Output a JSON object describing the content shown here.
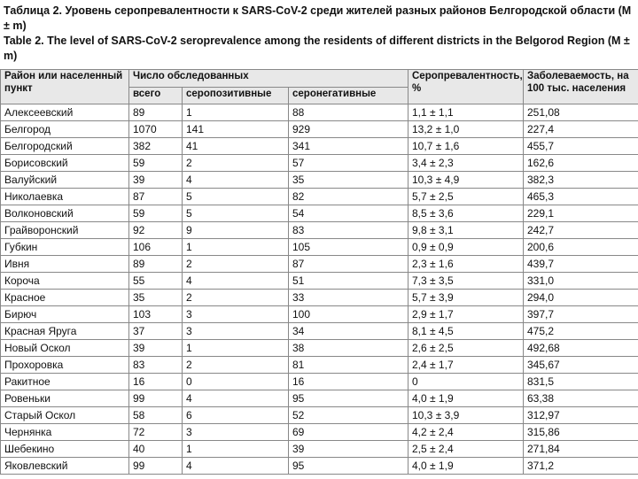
{
  "title_ru": "Таблица 2. Уровень серопревалентности к SARS-CoV-2 среди жителей разных районов Белгородской области (M ± m)",
  "title_en": "Table 2. The level of SARS-CoV-2 seroprevalence among the residents of different districts in the Belgorod Region (M ± m)",
  "table": {
    "header": [
      "Район или населенный пункт",
      "Число обследованных",
      "Серопревалентность, %",
      "Заболеваемость, на 100 тыс. населения"
    ],
    "subheader": [
      "всего",
      "серопозитивные",
      "серонегативные"
    ],
    "rows": [
      [
        "Алексеевский",
        "89",
        "1",
        "88",
        "1,1 ± 1,1",
        "251,08"
      ],
      [
        "Белгород",
        "1070",
        "141",
        "929",
        "13,2 ± 1,0",
        "227,4"
      ],
      [
        "Белгородский",
        "382",
        "41",
        "341",
        "10,7 ± 1,6",
        "455,7"
      ],
      [
        "Борисовский",
        "59",
        "2",
        "57",
        "3,4 ± 2,3",
        "162,6"
      ],
      [
        "Валуйский",
        "39",
        "4",
        "35",
        "10,3 ± 4,9",
        "382,3"
      ],
      [
        "Николаевка",
        "87",
        "5",
        "82",
        "5,7 ± 2,5",
        "465,3"
      ],
      [
        "Волконовский",
        "59",
        "5",
        "54",
        "8,5 ± 3,6",
        "229,1"
      ],
      [
        "Грайворонский",
        "92",
        "9",
        "83",
        "9,8 ± 3,1",
        "242,7"
      ],
      [
        "Губкин",
        "106",
        "1",
        "105",
        "0,9 ± 0,9",
        "200,6"
      ],
      [
        "Ивня",
        "89",
        "2",
        "87",
        "2,3 ± 1,6",
        "439,7"
      ],
      [
        "Короча",
        "55",
        "4",
        "51",
        "7,3 ± 3,5",
        "331,0"
      ],
      [
        "Красное",
        "35",
        "2",
        "33",
        "5,7 ± 3,9",
        "294,0"
      ],
      [
        "Бирюч",
        "103",
        "3",
        "100",
        "2,9 ± 1,7",
        "397,7"
      ],
      [
        "Красная Яруга",
        "37",
        "3",
        "34",
        "8,1 ± 4,5",
        "475,2"
      ],
      [
        "Новый Оскол",
        "39",
        "1",
        "38",
        "2,6 ± 2,5",
        "492,68"
      ],
      [
        "Прохоровка",
        "83",
        "2",
        "81",
        "2,4 ± 1,7",
        "345,67"
      ],
      [
        "Ракитное",
        "16",
        "0",
        "16",
        "0",
        "831,5"
      ],
      [
        "Ровеньки",
        "99",
        "4",
        "95",
        "4,0 ± 1,9",
        "63,38"
      ],
      [
        "Старый Оскол",
        "58",
        "6",
        "52",
        "10,3 ± 3,9",
        "312,97"
      ],
      [
        "Чернянка",
        "72",
        "3",
        "69",
        "4,2 ± 2,4",
        "315,86"
      ],
      [
        "Шебекино",
        "40",
        "1",
        "39",
        "2,5 ± 2,4",
        "271,84"
      ],
      [
        "Яковлевский",
        "99",
        "4",
        "95",
        "4,0 ± 1,9",
        "371,2"
      ]
    ]
  }
}
